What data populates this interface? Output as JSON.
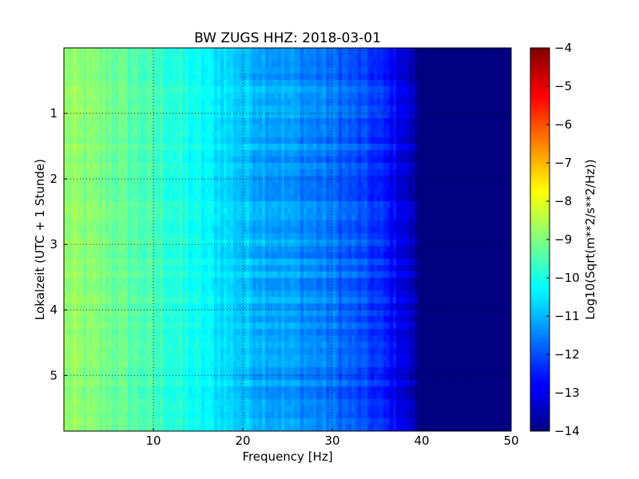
{
  "chart_data": {
    "type": "heatmap",
    "title": "BW ZUGS HHZ: 2018-03-01",
    "xlabel": "Frequency [Hz]",
    "ylabel": "Lokalzeit (UTC + 1 Stunde)",
    "xlim": [
      0,
      50
    ],
    "ylim": [
      5.85,
      0
    ],
    "x_ticks": [
      10,
      20,
      30,
      40,
      50
    ],
    "y_ticks": [
      1,
      2,
      3,
      4,
      5
    ],
    "grid": true,
    "colormap": "jet",
    "colorbar": {
      "label": "Log10(Sqrt(m**2/s**2/Hz))",
      "min": -14,
      "max": -4,
      "ticks": [
        -14,
        -13,
        -12,
        -11,
        -10,
        -9,
        -8,
        -7,
        -6,
        -5,
        -4
      ]
    },
    "spectrum_profile": {
      "frequency_hz": [
        0,
        5,
        10,
        15,
        20,
        25,
        30,
        35,
        38,
        40,
        42,
        50
      ],
      "log10_amplitude": [
        -8.8,
        -9.1,
        -9.6,
        -10.2,
        -10.8,
        -11.2,
        -11.6,
        -12.3,
        -13.0,
        -14.0,
        -14.0,
        -14.0
      ]
    }
  }
}
